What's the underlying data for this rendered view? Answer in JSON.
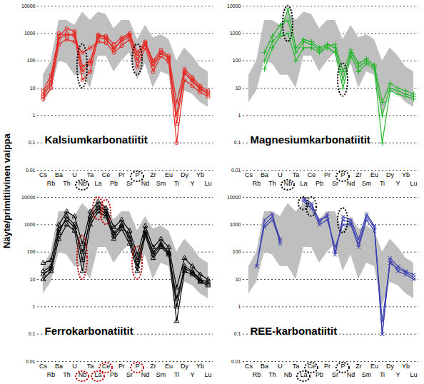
{
  "ylabel": "Näyte/primitiivinen vaippa",
  "chart_data": [
    {
      "type": "line",
      "title": "Kalsiumkarbonatiitit",
      "categories": [
        "Cs",
        "Rb",
        "Ba",
        "Th",
        "U",
        "Nb",
        "Ta",
        "La",
        "Ce",
        "Pb",
        "Pr",
        "Sr",
        "P",
        "Nd",
        "Zr",
        "Sm",
        "Eu",
        "Ti",
        "Dy",
        "Y",
        "Yb",
        "Lu"
      ],
      "log": "y",
      "ylim": [
        0.01,
        10000
      ],
      "yticks": [
        0.01,
        0.1,
        1,
        10,
        100,
        1000,
        10000
      ],
      "grid": true,
      "envelope": {
        "color": "#bfbfbf",
        "lower": [
          3,
          8,
          100,
          80,
          30,
          30,
          10,
          150,
          150,
          40,
          100,
          200,
          20,
          80,
          10,
          40,
          30,
          1,
          8,
          6,
          3,
          2
        ],
        "upper": [
          30,
          100,
          3000,
          3000,
          2000,
          6000,
          3000,
          6000,
          5000,
          1500,
          3000,
          3000,
          600,
          2000,
          700,
          900,
          600,
          100,
          300,
          150,
          60,
          40
        ]
      },
      "highlight": {
        "elements": [
          "Nb",
          "P"
        ],
        "color": "#000000"
      },
      "series": [
        {
          "color": "#e8241f",
          "marker": "circle",
          "values": [
            5,
            15,
            600,
            1000,
            800,
            20,
            40,
            700,
            600,
            300,
            500,
            800,
            100,
            400,
            60,
            200,
            120,
            1,
            40,
            20,
            10,
            7
          ]
        },
        {
          "color": "#e8241f",
          "marker": "circle",
          "values": [
            8,
            30,
            800,
            1500,
            1200,
            60,
            100,
            900,
            800,
            400,
            700,
            1000,
            200,
            500,
            100,
            250,
            150,
            3,
            50,
            25,
            12,
            8
          ]
        },
        {
          "color": "#e8241f",
          "marker": "circle",
          "values": [
            4,
            10,
            400,
            600,
            500,
            200,
            300,
            500,
            450,
            200,
            350,
            600,
            60,
            300,
            40,
            150,
            90,
            0.1,
            20,
            12,
            7,
            5
          ]
        },
        {
          "color": "#e8241f",
          "marker": "circle",
          "values": [
            6,
            20,
            1000,
            800,
            1000,
            40,
            80,
            800,
            700,
            250,
            600,
            900,
            150,
            450,
            80,
            200,
            130,
            0.5,
            35,
            18,
            9,
            6
          ]
        }
      ]
    },
    {
      "type": "line",
      "title": "Magnesiumkarbonatiitit",
      "categories": [
        "Cs",
        "Rb",
        "Ba",
        "Th",
        "U",
        "Nb",
        "Ta",
        "La",
        "Ce",
        "Pb",
        "Pr",
        "Sr",
        "P",
        "Nd",
        "Zr",
        "Sm",
        "Eu",
        "Ti",
        "Dy",
        "Y",
        "Yb",
        "Lu"
      ],
      "log": "y",
      "ylim": [
        0.01,
        10000
      ],
      "yticks": [
        0.01,
        0.1,
        1,
        10,
        100,
        1000,
        10000
      ],
      "grid": true,
      "envelope": {
        "color": "#bfbfbf",
        "lower": [
          3,
          8,
          100,
          80,
          30,
          30,
          10,
          150,
          150,
          40,
          100,
          200,
          20,
          80,
          10,
          40,
          30,
          1,
          8,
          6,
          3,
          2
        ],
        "upper": [
          30,
          100,
          3000,
          3000,
          2000,
          6000,
          3000,
          6000,
          5000,
          1500,
          3000,
          3000,
          600,
          2000,
          700,
          900,
          600,
          100,
          300,
          150,
          60,
          40
        ]
      },
      "highlight": {
        "elements": [
          "Nb",
          "P"
        ],
        "color": "#000000"
      },
      "series": [
        {
          "color": "#22b82a",
          "marker": "plus",
          "values": [
            null,
            null,
            100,
            500,
            1000,
            8000,
            300,
            600,
            500,
            300,
            400,
            300,
            20,
            200,
            60,
            100,
            60,
            1,
            10,
            8,
            6,
            5
          ]
        },
        {
          "color": "#22b82a",
          "marker": "plus",
          "values": [
            null,
            null,
            200,
            800,
            2000,
            3000,
            200,
            500,
            400,
            250,
            350,
            400,
            40,
            250,
            80,
            120,
            70,
            3,
            15,
            10,
            8,
            6
          ]
        },
        {
          "color": "#22b82a",
          "marker": "plus",
          "values": [
            null,
            null,
            50,
            300,
            800,
            1000,
            100,
            300,
            300,
            200,
            300,
            200,
            10,
            150,
            40,
            80,
            50,
            0.1,
            8,
            6,
            5,
            4
          ]
        }
      ]
    },
    {
      "type": "line",
      "title": "Ferrokarbonatiitit",
      "categories": [
        "Cs",
        "Rb",
        "Ba",
        "Th",
        "U",
        "Nb",
        "Ta",
        "La",
        "Ce",
        "Pb",
        "Pr",
        "Sr",
        "P",
        "Nd",
        "Zr",
        "Sm",
        "Eu",
        "Ti",
        "Dy",
        "Y",
        "Yb",
        "Lu"
      ],
      "log": "y",
      "ylim": [
        0.01,
        10000
      ],
      "yticks": [
        0.01,
        0.1,
        1,
        10,
        100,
        1000,
        10000
      ],
      "grid": true,
      "envelope": {
        "color": "#bfbfbf",
        "lower": [
          3,
          8,
          100,
          80,
          30,
          30,
          10,
          150,
          150,
          40,
          100,
          200,
          20,
          80,
          10,
          40,
          30,
          1,
          8,
          6,
          3,
          2
        ],
        "upper": [
          30,
          100,
          3000,
          3000,
          2000,
          6000,
          3000,
          6000,
          5000,
          1500,
          3000,
          3000,
          600,
          2000,
          700,
          900,
          600,
          100,
          300,
          150,
          60,
          40
        ]
      },
      "highlight": {
        "elements": [
          "Nb",
          "La",
          "Ce",
          "P"
        ],
        "color": "#c00000"
      },
      "series": [
        {
          "color": "#000000",
          "marker": "triangle",
          "values": [
            20,
            30,
            500,
            2000,
            1000,
            50,
            2000,
            5000,
            3000,
            500,
            1000,
            300,
            30,
            600,
            100,
            200,
            100,
            1,
            30,
            20,
            10,
            8
          ]
        },
        {
          "color": "#000000",
          "marker": "triangle",
          "values": [
            10,
            20,
            300,
            1000,
            600,
            20,
            1000,
            3000,
            2000,
            300,
            700,
            200,
            20,
            400,
            60,
            150,
            80,
            0.3,
            20,
            15,
            8,
            6
          ]
        },
        {
          "color": "#000000",
          "marker": "triangle",
          "values": [
            40,
            50,
            1000,
            3000,
            2000,
            200,
            3000,
            7000,
            4000,
            800,
            1500,
            600,
            80,
            900,
            150,
            300,
            150,
            5,
            60,
            30,
            15,
            10
          ]
        },
        {
          "color": "#000000",
          "marker": "triangle",
          "values": [
            15,
            25,
            700,
            1500,
            800,
            100,
            1500,
            4000,
            2500,
            400,
            900,
            400,
            50,
            500,
            80,
            180,
            90,
            2,
            25,
            18,
            9,
            7
          ]
        }
      ]
    },
    {
      "type": "line",
      "title": "REE-karbonatiitit",
      "categories": [
        "Cs",
        "Rb",
        "Ba",
        "Th",
        "U",
        "Nb",
        "Ta",
        "La",
        "Ce",
        "Pb",
        "Pr",
        "Sr",
        "P",
        "Nd",
        "Zr",
        "Sm",
        "Eu",
        "Ti",
        "Dy",
        "Y",
        "Yb",
        "Lu"
      ],
      "log": "y",
      "ylim": [
        0.01,
        10000
      ],
      "yticks": [
        0.01,
        0.1,
        1,
        10,
        100,
        1000,
        10000
      ],
      "grid": true,
      "envelope": {
        "color": "#bfbfbf",
        "lower": [
          3,
          8,
          100,
          80,
          30,
          30,
          10,
          150,
          150,
          40,
          100,
          200,
          20,
          80,
          10,
          40,
          30,
          1,
          8,
          6,
          3,
          2
        ],
        "upper": [
          30,
          100,
          3000,
          3000,
          2000,
          6000,
          3000,
          6000,
          5000,
          1500,
          3000,
          3000,
          600,
          2000,
          700,
          900,
          600,
          100,
          300,
          150,
          60,
          40
        ]
      },
      "highlight": {
        "elements": [
          "La",
          "Ce",
          "P"
        ],
        "color": "#000000"
      },
      "series": [
        {
          "color": "#3a3fb0",
          "marker": "cross",
          "values": [
            null,
            30,
            1000,
            2000,
            300,
            null,
            null,
            8000,
            5000,
            1500,
            2000,
            100,
            1500,
            1200,
            200,
            2000,
            800,
            0.1,
            60,
            30,
            20,
            15
          ]
        },
        {
          "color": "#3a3fb0",
          "marker": "cross",
          "values": [
            null,
            30,
            1500,
            2500,
            200,
            null,
            null,
            7000,
            4000,
            1000,
            1500,
            150,
            1000,
            1000,
            150,
            1500,
            600,
            0.3,
            40,
            25,
            18,
            12
          ]
        },
        {
          "color": "#3a3fb0",
          "marker": "cross",
          "values": [
            null,
            null,
            800,
            1500,
            250,
            null,
            null,
            9000,
            6000,
            1200,
            2500,
            80,
            2000,
            1500,
            300,
            2500,
            900,
            0.1,
            50,
            20,
            15,
            10
          ]
        }
      ]
    }
  ]
}
